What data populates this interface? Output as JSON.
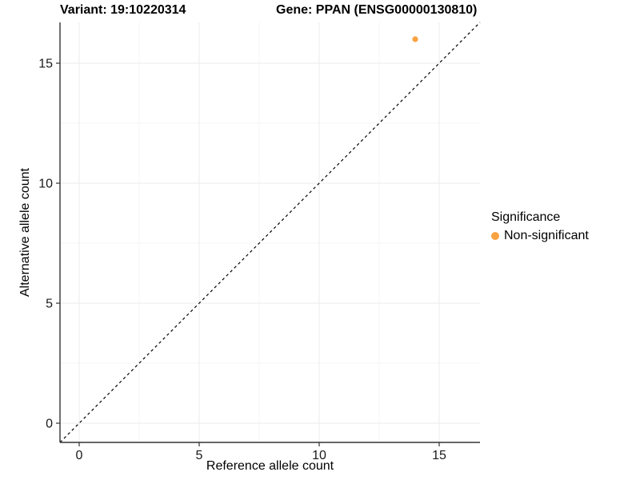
{
  "title": {
    "variant": "Variant: 19:10220314",
    "gene": "Gene: PPAN (ENSG00000130810)"
  },
  "axes": {
    "x_label": "Reference allele count",
    "y_label": "Alternative allele count"
  },
  "legend": {
    "title": "Significance",
    "items": [
      {
        "label": "Non-significant",
        "color": "#F9A242"
      }
    ]
  },
  "colors": {
    "point": "#F9A242",
    "grid_major": "#EBEBEB",
    "grid_minor": "#F5F5F5",
    "axis_line": "#333333",
    "tick": "#333333",
    "text": "#1A1A1A",
    "identity_line": "#000000",
    "background": "#FFFFFF"
  },
  "chart_data": {
    "type": "scatter",
    "title": "Variant: 19:10220314   Gene: PPAN (ENSG00000130810)",
    "xlabel": "Reference allele count",
    "ylabel": "Alternative allele count",
    "xlim": [
      -0.8,
      16.7
    ],
    "ylim": [
      -0.8,
      16.7
    ],
    "x_ticks": [
      0,
      5,
      10,
      15
    ],
    "y_ticks": [
      0,
      5,
      10,
      15
    ],
    "x_minor_ticks": [
      2.5,
      7.5,
      12.5
    ],
    "y_minor_ticks": [
      2.5,
      7.5,
      12.5
    ],
    "grid": true,
    "legend_position": "right",
    "identity_line": {
      "from": [
        -0.8,
        -0.8
      ],
      "to": [
        16.7,
        16.7
      ],
      "style": "dashed",
      "color": "#000000"
    },
    "series": [
      {
        "name": "Non-significant",
        "color": "#F9A242",
        "points": [
          {
            "x": 14,
            "y": 16
          }
        ]
      }
    ]
  }
}
